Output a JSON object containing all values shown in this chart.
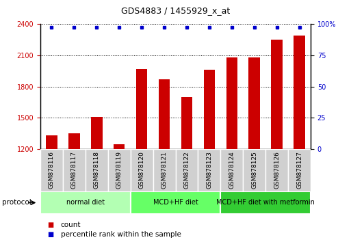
{
  "title": "GDS4883 / 1455929_x_at",
  "samples": [
    "GSM878116",
    "GSM878117",
    "GSM878118",
    "GSM878119",
    "GSM878120",
    "GSM878121",
    "GSM878122",
    "GSM878123",
    "GSM878124",
    "GSM878125",
    "GSM878126",
    "GSM878127"
  ],
  "counts": [
    1330,
    1350,
    1510,
    1245,
    1970,
    1870,
    1700,
    1960,
    2080,
    2080,
    2250,
    2290
  ],
  "ylim_left": [
    1200,
    2400
  ],
  "ylim_right": [
    0,
    100
  ],
  "yticks_left": [
    1200,
    1500,
    1800,
    2100,
    2400
  ],
  "yticks_right": [
    0,
    25,
    50,
    75,
    100
  ],
  "bar_color": "#cc0000",
  "dot_color": "#0000cc",
  "groups": [
    {
      "label": "normal diet",
      "start": 0,
      "end": 4,
      "color": "#b3ffb3"
    },
    {
      "label": "MCD+HF diet",
      "start": 4,
      "end": 8,
      "color": "#66ff66"
    },
    {
      "label": "MCD+HF diet with metformin",
      "start": 8,
      "end": 12,
      "color": "#33cc33"
    }
  ],
  "protocol_label": "protocol",
  "legend_count_label": "count",
  "legend_pct_label": "percentile rank within the sample",
  "tick_label_color_left": "#cc0000",
  "tick_label_color_right": "#0000cc",
  "bar_width": 0.5,
  "sample_box_color": "#d0d0d0",
  "title_fontsize": 9,
  "axis_fontsize": 7,
  "label_fontsize": 6.5,
  "group_fontsize": 7,
  "legend_fontsize": 7.5
}
